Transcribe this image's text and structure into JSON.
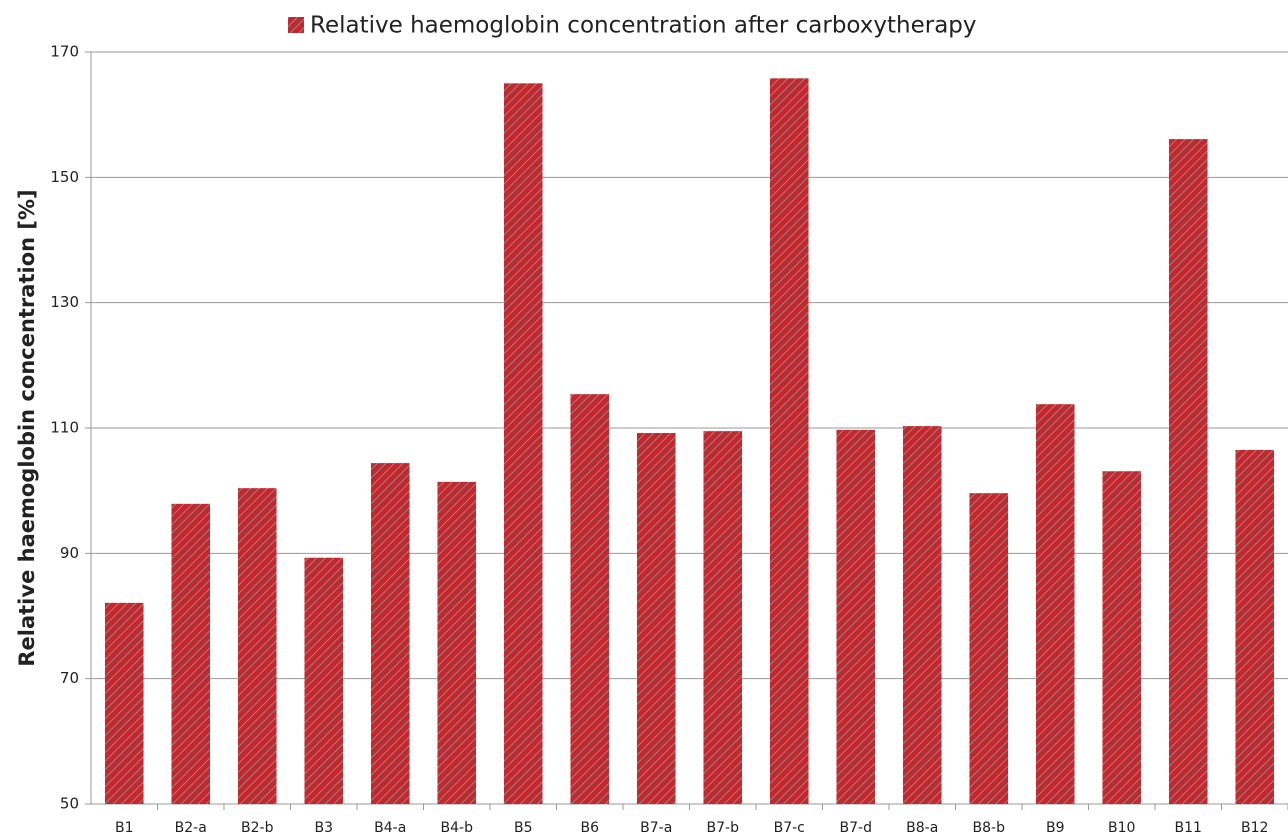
{
  "chart_data": {
    "type": "bar",
    "y_label": "Relative haemoglobin concentration [%]",
    "categories": [
      "B1",
      "B2-a",
      "B2-b",
      "B3",
      "B4-a",
      "B4-b",
      "B5",
      "B6",
      "B7-a",
      "B7-b",
      "B7-c",
      "B7-d",
      "B8-a",
      "B8-b",
      "B9",
      "B10",
      "B11",
      "B12"
    ],
    "series": [
      {
        "name": "Relative haemoglobin concentration after carboxytherapy",
        "color": "#c8262c",
        "values": [
          82.1,
          97.9,
          100.4,
          89.3,
          104.4,
          101.4,
          165.0,
          115.4,
          109.2,
          109.5,
          165.8,
          109.7,
          110.3,
          99.6,
          113.8,
          103.1,
          156.1,
          106.5
        ]
      }
    ],
    "ylim": [
      50,
      170
    ],
    "yticks": [
      50,
      70,
      90,
      110,
      130,
      150,
      170
    ],
    "grid": true,
    "legend": "top"
  }
}
